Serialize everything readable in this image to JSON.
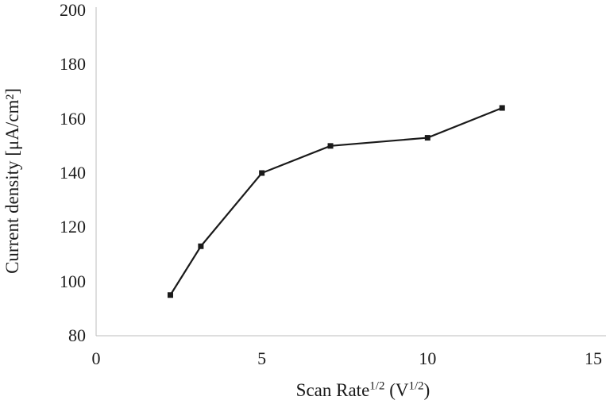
{
  "chart_data": {
    "type": "line",
    "title": "",
    "ylabel": "Current density [μA/cm²]",
    "xlabel_parts": {
      "text1": "Scan Rate",
      "sup1": "1/2",
      "text2": " (V",
      "sup2": "1/2",
      "text3": ")"
    },
    "x": [
      2.24,
      3.16,
      5,
      7.07,
      10,
      12.25
    ],
    "y": [
      95,
      113,
      140,
      150,
      153,
      164
    ],
    "xlim": [
      0,
      15
    ],
    "ylim": [
      80,
      200
    ],
    "xticks": [
      0,
      5,
      10,
      15
    ],
    "yticks": [
      80,
      100,
      120,
      140,
      160,
      180,
      200
    ],
    "grid": false,
    "legend": false,
    "marker": "square",
    "marker_size": 7,
    "line_width": 2.2,
    "line_color": "#1a1a1a",
    "marker_color": "#1a1a1a",
    "axis_color": "#bdbdbd",
    "background": "#ffffff"
  }
}
